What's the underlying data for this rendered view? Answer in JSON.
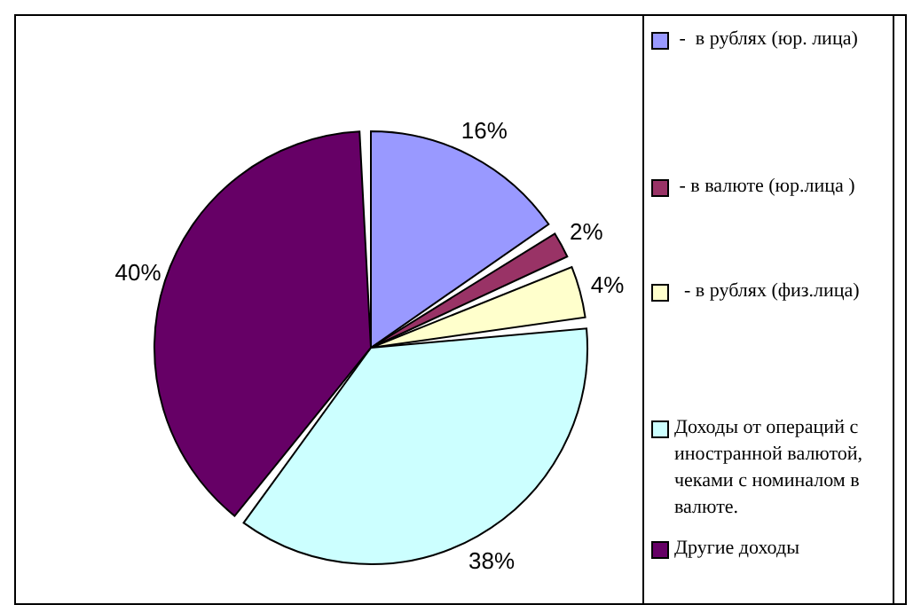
{
  "chart_data": {
    "type": "pie",
    "categories": [
      " -  в рублях (юр. лица)",
      " - в валюте (юр.лица )",
      "  - в рублях (физ.лица)",
      "Доходы от операций с иностранной валютой, чеками с номиналом в валюте.",
      "Другие доходы"
    ],
    "values": [
      16,
      2,
      4,
      38,
      40
    ],
    "colors": [
      "#9999ff",
      "#993366",
      "#ffffcc",
      "#ccffff",
      "#660066"
    ],
    "value_labels": [
      "16%",
      "2%",
      "4%",
      "38%",
      "40%"
    ],
    "legend": "right"
  }
}
